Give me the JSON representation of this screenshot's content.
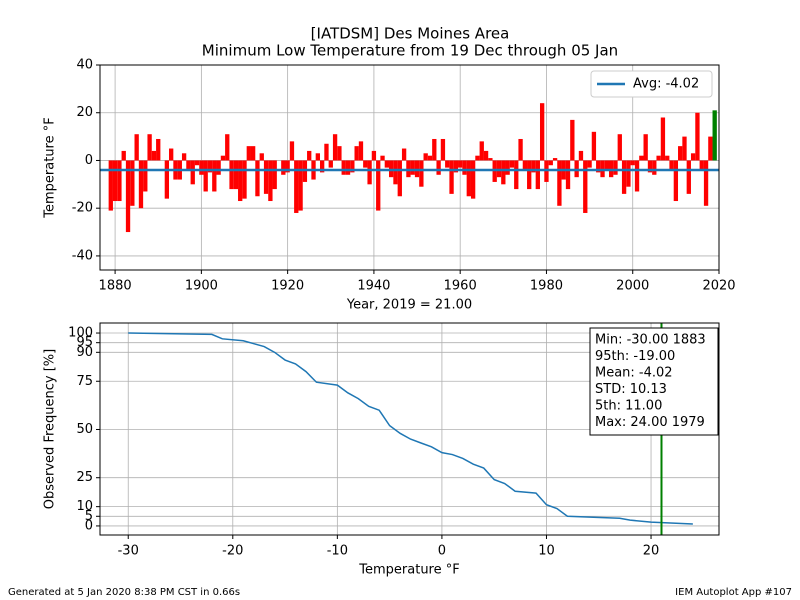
{
  "chart_data": [
    {
      "type": "bar",
      "title": "[IATDSM] Des Moines Area",
      "subtitle": "Minimum Low Temperature from 19 Dec through 05 Jan",
      "xlabel": "Year, 2019 = 21.00",
      "ylabel": "Temperature °F",
      "x": [
        1879,
        1880,
        1881,
        1882,
        1883,
        1884,
        1885,
        1886,
        1887,
        1888,
        1889,
        1890,
        1891,
        1892,
        1893,
        1894,
        1895,
        1896,
        1897,
        1898,
        1899,
        1900,
        1901,
        1902,
        1903,
        1904,
        1905,
        1906,
        1907,
        1908,
        1909,
        1910,
        1911,
        1912,
        1913,
        1914,
        1915,
        1916,
        1917,
        1918,
        1919,
        1920,
        1921,
        1922,
        1923,
        1924,
        1925,
        1926,
        1927,
        1928,
        1929,
        1930,
        1931,
        1932,
        1933,
        1934,
        1935,
        1936,
        1937,
        1938,
        1939,
        1940,
        1941,
        1942,
        1943,
        1944,
        1945,
        1946,
        1947,
        1948,
        1949,
        1950,
        1951,
        1952,
        1953,
        1954,
        1955,
        1956,
        1957,
        1958,
        1959,
        1960,
        1961,
        1962,
        1963,
        1964,
        1965,
        1966,
        1967,
        1968,
        1969,
        1970,
        1971,
        1972,
        1973,
        1974,
        1975,
        1976,
        1977,
        1978,
        1979,
        1980,
        1981,
        1982,
        1983,
        1984,
        1985,
        1986,
        1987,
        1988,
        1989,
        1990,
        1991,
        1992,
        1993,
        1994,
        1995,
        1996,
        1997,
        1998,
        1999,
        2000,
        2001,
        2002,
        2003,
        2004,
        2005,
        2006,
        2007,
        2008,
        2009,
        2010,
        2011,
        2012,
        2013,
        2014,
        2015,
        2016,
        2017,
        2018,
        2019
      ],
      "values": [
        -21,
        -17,
        -17,
        4,
        -30,
        -19,
        11,
        -20,
        -13,
        11,
        4,
        9,
        0,
        -16,
        5,
        -8,
        -8,
        3,
        -4,
        -10,
        -2,
        -6,
        -13,
        -5,
        -13,
        -6,
        2,
        11,
        -12,
        -12,
        -17,
        -16,
        6,
        6,
        -15,
        3,
        -14,
        -17,
        -12,
        0,
        -6,
        -5,
        8,
        -22,
        -21,
        -9,
        4,
        -8,
        3,
        -5,
        7,
        -3,
        11,
        6,
        -6,
        -6,
        -5,
        6,
        8,
        -3,
        -10,
        4,
        -21,
        2,
        -3,
        -7,
        -10,
        -15,
        5,
        -7,
        -6,
        -7,
        -11,
        3,
        2,
        9,
        -6,
        9,
        -3,
        -14,
        -5,
        -3,
        -6,
        -15,
        -16,
        2,
        8,
        4,
        1,
        -9,
        -7,
        -10,
        -6,
        -3,
        -12,
        9,
        -4,
        -12,
        -5,
        -12,
        24,
        -9,
        -2,
        1,
        -19,
        -8,
        -12,
        17,
        -7,
        4,
        -22,
        -3,
        12,
        -5,
        -7,
        -4,
        -7,
        -6,
        11,
        -14,
        -11,
        -2,
        -13,
        2,
        11,
        -5,
        -6,
        2,
        18,
        2,
        -4,
        -17,
        6,
        10,
        -14,
        3,
        20,
        -4,
        -19,
        10,
        21
      ],
      "color": "#ff0000",
      "last_color": "#008000",
      "reference_line": {
        "name": "Avg: -4.02",
        "value": -4.02,
        "color": "#1f77b4"
      },
      "legend": "upper right",
      "xlim": [
        1876.5,
        2020
      ],
      "xticks": [
        1880,
        1900,
        1920,
        1940,
        1960,
        1980,
        2000,
        2020
      ],
      "ylim": [
        -45.9,
        40
      ],
      "yticks": [
        -40,
        -20,
        0,
        20,
        40
      ],
      "grid": true
    },
    {
      "type": "line",
      "xlabel": "Temperature °F",
      "ylabel": "Observed Frequency [%]",
      "x": [
        -30,
        -22,
        -21,
        -19,
        -17,
        -16,
        -15,
        -14,
        -13,
        -12,
        -10,
        -9,
        -8,
        -7,
        -6,
        -5,
        -4,
        -3,
        -2,
        -1,
        0,
        1,
        2,
        3,
        4,
        5,
        6,
        7,
        9,
        10,
        11,
        12,
        17,
        18,
        20,
        24
      ],
      "values": [
        100,
        99.3,
        97,
        96,
        93,
        90,
        86,
        84,
        80,
        74.5,
        73,
        69,
        66,
        62,
        60,
        52,
        48,
        45,
        43,
        41,
        38,
        37,
        35,
        32,
        30,
        24,
        22,
        18,
        17,
        11,
        9,
        5,
        4,
        3,
        2,
        1
      ],
      "color": "#1f77b4",
      "vline": {
        "value": 21,
        "color": "#008000"
      },
      "annotation": [
        "Min: -30.00 1883",
        "95th: -19.00",
        "Mean: -4.02",
        "STD: 10.13",
        "5th: 11.00",
        "Max: 24.00 1979"
      ],
      "xlim": [
        -32.7,
        26.5
      ],
      "xticks": [
        -30,
        -20,
        -10,
        0,
        10,
        20
      ],
      "ylim": [
        -4.7,
        105.2
      ],
      "yticks": [
        0,
        5,
        10,
        25,
        50,
        75,
        90,
        95,
        100
      ],
      "grid": true
    }
  ],
  "footer": {
    "left": "Generated at 5 Jan 2020 8:38 PM CST in 0.66s",
    "right": "IEM Autoplot App #107"
  }
}
